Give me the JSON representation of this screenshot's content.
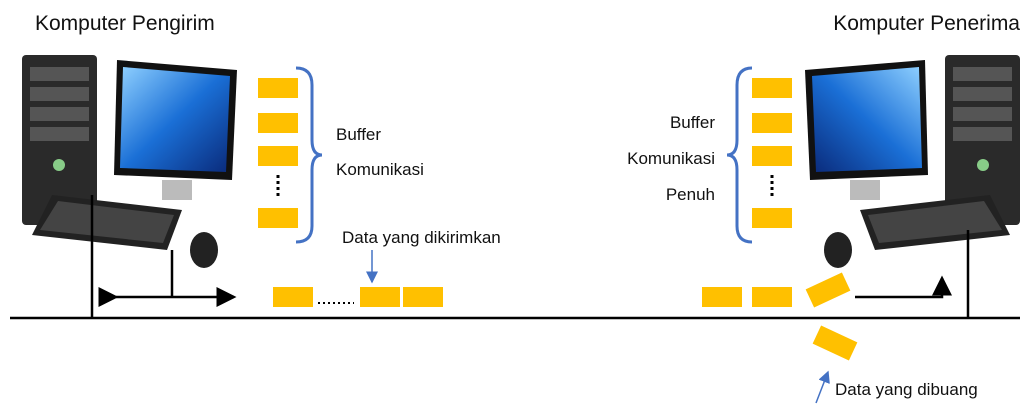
{
  "sender": {
    "title": "Komputer Pengirim",
    "buffer_label": [
      "Buffer",
      "Komunikasi"
    ]
  },
  "receiver": {
    "title": "Komputer Penerima",
    "buffer_label": [
      "Buffer",
      "Komunikasi",
      "Penuh"
    ]
  },
  "annotations": {
    "sent": "Data yang dikirimkan",
    "dropped": "Data yang dibuang"
  }
}
